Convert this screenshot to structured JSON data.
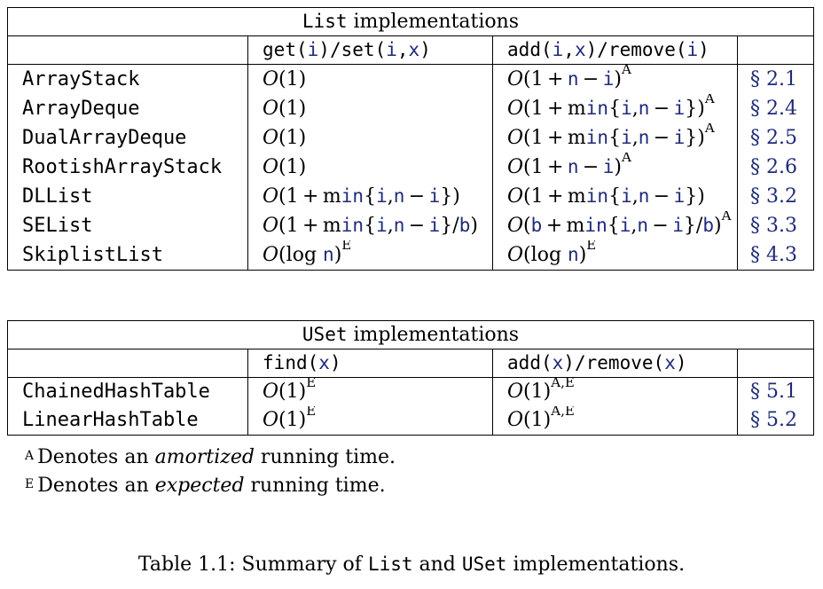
{
  "list_table": {
    "title_code": "List",
    "title_rest": " implementations",
    "col2_header": "get(i)/set(i,x)",
    "col3_header": "add(i,x)/remove(i)",
    "rows": [
      {
        "name": "ArrayStack",
        "get_set": "O(1)",
        "add_remove": "O(1+n−i)^A",
        "section": "§ 2.1"
      },
      {
        "name": "ArrayDeque",
        "get_set": "O(1)",
        "add_remove": "O(1+min{i,n−i})^A",
        "section": "§ 2.4"
      },
      {
        "name": "DualArrayDeque",
        "get_set": "O(1)",
        "add_remove": "O(1+min{i,n−i})^A",
        "section": "§ 2.5"
      },
      {
        "name": "RootishArrayStack",
        "get_set": "O(1)",
        "add_remove": "O(1+n−i)^A",
        "section": "§ 2.6"
      },
      {
        "name": "DLList",
        "get_set": "O(1+min{i,n−i})",
        "add_remove": "O(1+min{i,n−i})",
        "section": "§ 3.2"
      },
      {
        "name": "SEList",
        "get_set": "O(1+min{i,n−i}/b)",
        "add_remove": "O(b+min{i,n−i}/b)^A",
        "section": "§ 3.3"
      },
      {
        "name": "SkiplistList",
        "get_set": "O(log n)^E",
        "add_remove": "O(log n)^E",
        "section": "§ 4.3"
      }
    ]
  },
  "uset_table": {
    "title_code": "USet",
    "title_rest": " implementations",
    "col2_header": "find(x)",
    "col3_header": "add(x)/remove(x)",
    "rows": [
      {
        "name": "ChainedHashTable",
        "find": "O(1)^E",
        "add_remove": "O(1)^A,E",
        "section": "§ 5.1"
      },
      {
        "name": "LinearHashTable",
        "find": "O(1)^E",
        "add_remove": "O(1)^A,E",
        "section": "§ 5.2"
      }
    ]
  },
  "notes": {
    "a_mark": "A",
    "a_text_pre": "Denotes an ",
    "a_text_em": "amortized",
    "a_text_post": " running time.",
    "e_mark": "E",
    "e_text_pre": "Denotes an ",
    "e_text_em": "expected",
    "e_text_post": " running time."
  },
  "caption": {
    "prefix": "Table 1.1: Summary of ",
    "code1": "List",
    "middle": " and ",
    "code2": "USet",
    "suffix": " implementations."
  }
}
